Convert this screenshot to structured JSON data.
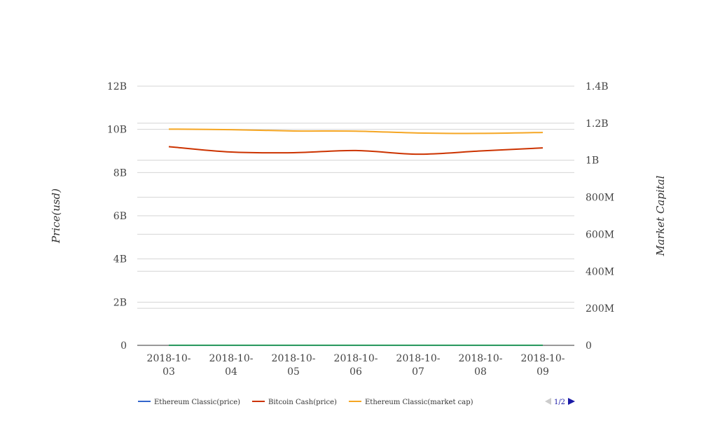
{
  "chart_data": {
    "type": "line",
    "x": [
      "2018-10-03",
      "2018-10-04",
      "2018-10-05",
      "2018-10-06",
      "2018-10-07",
      "2018-10-08",
      "2018-10-09"
    ],
    "x_tick_labels": [
      [
        "2018-10-",
        "03"
      ],
      [
        "2018-10-",
        "04"
      ],
      [
        "2018-10-",
        "05"
      ],
      [
        "2018-10-",
        "06"
      ],
      [
        "2018-10-",
        "07"
      ],
      [
        "2018-10-",
        "08"
      ],
      [
        "2018-10-",
        "09"
      ]
    ],
    "ylabel_left": "Price(usd)",
    "ylabel_right": "Market Capital",
    "ylim_left": [
      0,
      12000000000
    ],
    "ylim_right": [
      0,
      1400000000
    ],
    "yticks_left": [
      0,
      2000000000,
      4000000000,
      6000000000,
      8000000000,
      10000000000,
      12000000000
    ],
    "ytick_labels_left": [
      "0",
      "2B",
      "4B",
      "6B",
      "8B",
      "10B",
      "12B"
    ],
    "yticks_right": [
      0,
      200000000,
      400000000,
      600000000,
      800000000,
      1000000000,
      1200000000,
      1400000000
    ],
    "ytick_labels_right": [
      "0",
      "200M",
      "400M",
      "600M",
      "800M",
      "1B",
      "1.2B",
      "1.4B"
    ],
    "grid": true,
    "legend_position": "bottom-left",
    "series": [
      {
        "name": "Ethereum Classic(price)",
        "axis": "left",
        "color": "#3366cc",
        "values": [
          9.5,
          9.4,
          9.4,
          9.5,
          9.3,
          9.3,
          9.4
        ]
      },
      {
        "name": "Bitcoin Cash(price)",
        "axis": "left",
        "color": "#cc3300",
        "values": [
          9200000000,
          8950000000,
          8920000000,
          9020000000,
          8850000000,
          9000000000,
          9140000000
        ]
      },
      {
        "name": "Ethereum Classic(market cap)",
        "axis": "right",
        "color": "#f5a623",
        "values": [
          1168000000,
          1165000000,
          1158000000,
          1157000000,
          1147000000,
          1145000000,
          1150000000
        ]
      },
      {
        "name": "",
        "axis": "left",
        "color": "#2e9e5b",
        "values": [
          5000000,
          5000000,
          5000000,
          5000000,
          5000000,
          5000000,
          5000000
        ]
      }
    ],
    "legend_pager": "1/2"
  }
}
